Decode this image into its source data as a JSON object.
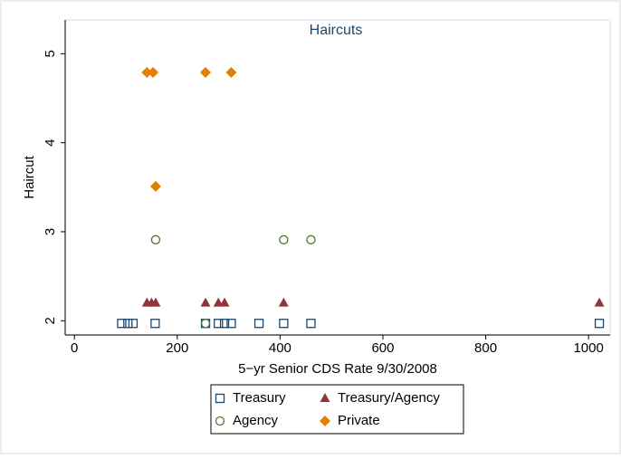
{
  "chart_data": {
    "type": "scatter",
    "title": "Haircuts",
    "x_label": "5−yr Senior CDS Rate 9/30/2008",
    "y_label": "Haircut",
    "xlim": [
      -18,
      1042
    ],
    "ylim": [
      1.84,
      5.38
    ],
    "xticks": [
      0,
      200,
      400,
      600,
      800,
      1000
    ],
    "yticks": [
      2,
      3,
      4,
      5
    ],
    "grid": false,
    "series": [
      {
        "name": "Treasury",
        "color": "#1a476f",
        "marker": "square",
        "x": [
          92,
          104,
          114,
          157,
          255,
          280,
          292,
          305,
          359,
          407,
          460,
          1021
        ],
        "values": [
          1.97,
          1.97,
          1.97,
          1.97,
          1.97,
          1.97,
          1.97,
          1.97,
          1.97,
          1.97,
          1.97,
          1.97
        ]
      },
      {
        "name": "Treasury/Agency",
        "color": "#90353b",
        "marker": "triangle",
        "x": [
          141,
          150,
          158,
          255,
          280,
          292,
          407,
          1021
        ],
        "values": [
          2.2,
          2.2,
          2.2,
          2.2,
          2.2,
          2.2,
          2.2,
          2.2
        ]
      },
      {
        "name": "Agency",
        "color": "#55752f",
        "marker": "circle",
        "x": [
          158,
          255,
          407,
          460
        ],
        "values": [
          2.91,
          1.97,
          2.91,
          2.91
        ]
      },
      {
        "name": "Private",
        "color": "#e37e00",
        "marker": "diamond",
        "x": [
          141,
          153,
          158,
          255,
          305
        ],
        "values": [
          4.79,
          4.79,
          3.51,
          4.79,
          4.79
        ]
      }
    ]
  }
}
